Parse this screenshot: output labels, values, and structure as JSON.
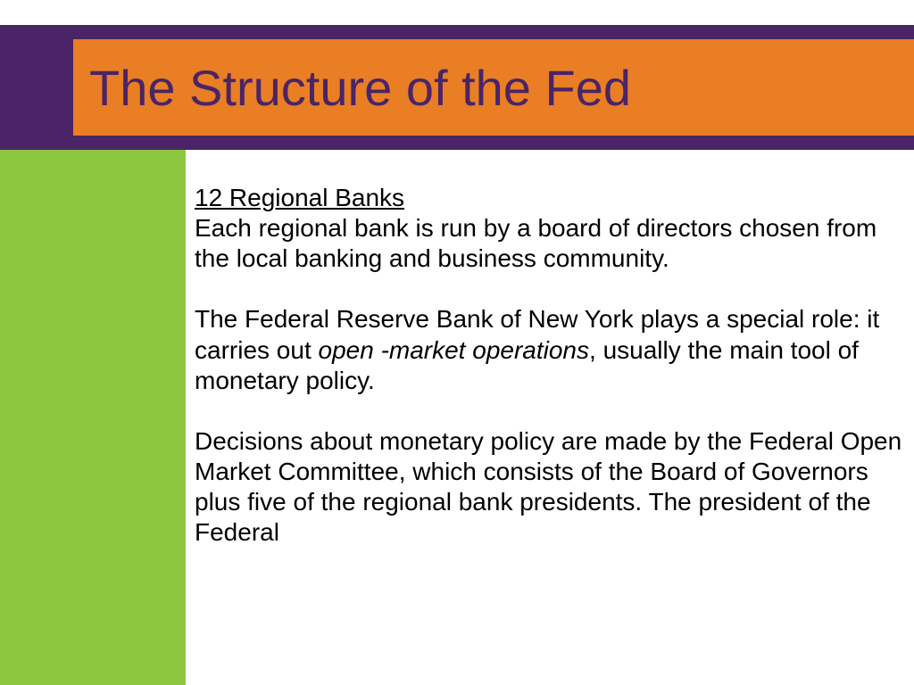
{
  "layout": {
    "slide_width": 1024,
    "slide_height": 768,
    "colors": {
      "header_band": "#4a2466",
      "title_box": "#e97e24",
      "title_text": "#4a2466",
      "sidebar": "#8dc63f",
      "body_text": "#000000",
      "background": "#ffffff"
    },
    "typography": {
      "title_fontsize": 56,
      "body_fontsize": 28,
      "font_family": "Arial, Helvetica, sans-serif"
    }
  },
  "title": "The Structure of the Fed",
  "content": {
    "section_heading": "12 Regional Banks",
    "para1": "Each regional bank is run by a board of directors chosen from the local banking and business community.",
    "para2_pre": "The Federal Reserve Bank of New York plays a special role: it carries out ",
    "para2_italic": "open -market operations",
    "para2_post": ", usually the main tool of monetary policy.",
    "para3": "Decisions about monetary policy are made by the Federal Open Market Committee, which consists of the Board of Governors plus five of the regional bank presidents. The president of the Federal"
  }
}
